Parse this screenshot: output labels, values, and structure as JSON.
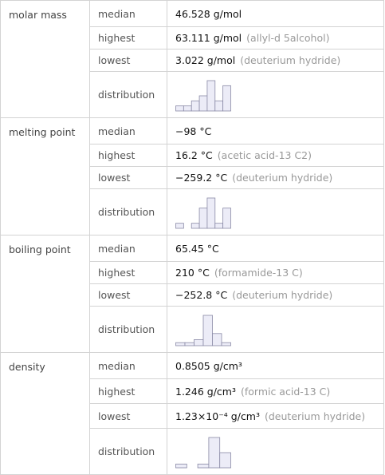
{
  "sections": [
    {
      "property": "molar mass",
      "rows": [
        {
          "label": "median",
          "value": "46.528 g/mol"
        },
        {
          "label": "highest",
          "value": "63.111 g/mol",
          "note": "(allyl-d 5alcohol)"
        },
        {
          "label": "lowest",
          "value": "3.022 g/mol",
          "note": "(deuterium hydride)"
        }
      ],
      "distribution": {
        "label": "distribution",
        "counts": [
          1,
          1,
          2,
          3,
          6,
          2,
          5
        ]
      }
    },
    {
      "property": "melting point",
      "rows": [
        {
          "label": "median",
          "value": "−98 °C"
        },
        {
          "label": "highest",
          "value": "16.2 °C",
          "note": "(acetic acid-13 C2)"
        },
        {
          "label": "lowest",
          "value": "−259.2 °C",
          "note": "(deuterium hydride)"
        }
      ],
      "distribution": {
        "label": "distribution",
        "counts": [
          1,
          0,
          1,
          4,
          6,
          1,
          4
        ]
      }
    },
    {
      "property": "boiling point",
      "rows": [
        {
          "label": "median",
          "value": "65.45 °C"
        },
        {
          "label": "highest",
          "value": "210 °C",
          "note": "(formamide-13 C)"
        },
        {
          "label": "lowest",
          "value": "−252.8 °C",
          "note": "(deuterium hydride)"
        }
      ],
      "distribution": {
        "label": "distribution",
        "counts": [
          1,
          1,
          2,
          10,
          4,
          1
        ]
      }
    },
    {
      "property": "density",
      "rows": [
        {
          "label": "median",
          "value": "0.8505 g/cm³"
        },
        {
          "label": "highest",
          "value": "1.246 g/cm³",
          "note": "(formic acid-13 C)"
        },
        {
          "label": "lowest",
          "value": "1.23×10⁻⁴ g/cm³",
          "note": "(deuterium hydride)"
        }
      ],
      "distribution": {
        "label": "distribution",
        "counts": [
          1,
          0,
          1,
          8,
          4
        ]
      }
    }
  ]
}
